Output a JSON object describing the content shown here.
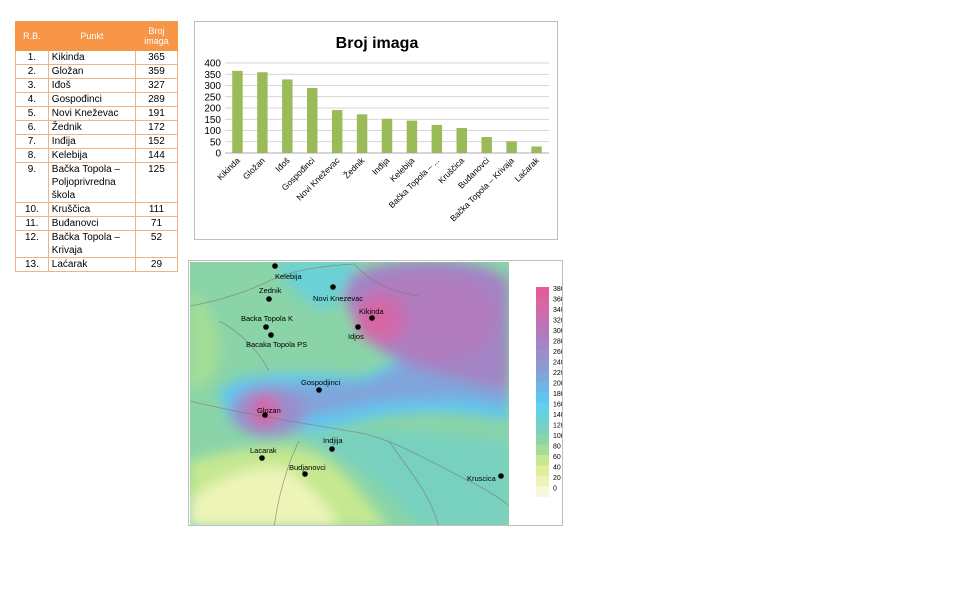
{
  "table": {
    "headers": {
      "rb": "R.B.",
      "punkt": "Punkt",
      "broj_line1": "Broj",
      "broj_line2": "imaga"
    },
    "rows": [
      {
        "rb": "1.",
        "punkt": "Kikinda",
        "broj": "365"
      },
      {
        "rb": "2.",
        "punkt": "Gložan",
        "broj": "359"
      },
      {
        "rb": "3.",
        "punkt": "Iđoš",
        "broj": "327"
      },
      {
        "rb": "4.",
        "punkt": "Gospođinci",
        "broj": "289"
      },
      {
        "rb": "5.",
        "punkt": "Novi Kneževac",
        "broj": "191"
      },
      {
        "rb": "6.",
        "punkt": "Žednik",
        "broj": "172"
      },
      {
        "rb": "7.",
        "punkt": "Inđija",
        "broj": "152"
      },
      {
        "rb": "8.",
        "punkt": "Kelebija",
        "broj": "144"
      },
      {
        "rb": "9.",
        "punkt": "Bačka Topola – Poljoprivredna škola",
        "broj": "125"
      },
      {
        "rb": "10.",
        "punkt": "Kruščica",
        "broj": "111"
      },
      {
        "rb": "11.",
        "punkt": "Buđanovci",
        "broj": "71"
      },
      {
        "rb": "12.",
        "punkt": "Bačka Topola – Krivaja",
        "broj": "52"
      },
      {
        "rb": "13.",
        "punkt": "Laćarak",
        "broj": "29"
      }
    ]
  },
  "chart_data": [
    {
      "type": "bar",
      "title": "Broj imaga",
      "categories": [
        "Kikinda",
        "Gložan",
        "Iđoš",
        "Gospođinci",
        "Novi Kneževac",
        "Žednik",
        "Inđija",
        "Kelebija",
        "Bačka Topola – ...",
        "Kruščica",
        "Buđanovci",
        "Bačka Topola – Krivaja",
        "Laćarak"
      ],
      "values": [
        365,
        359,
        327,
        289,
        191,
        172,
        152,
        144,
        125,
        111,
        71,
        52,
        29
      ],
      "ylim": [
        0,
        400
      ],
      "yticks": [
        0,
        50,
        100,
        150,
        200,
        250,
        300,
        350,
        400
      ],
      "grid": true,
      "bar_color": "#9bbb59"
    },
    {
      "type": "heatmap",
      "points": [
        {
          "name": "Kelebija"
        },
        {
          "name": "Zednik"
        },
        {
          "name": "Novi Knezevac"
        },
        {
          "name": "Kikinda"
        },
        {
          "name": "Backa Topola K"
        },
        {
          "name": "Idjos"
        },
        {
          "name": "Bacaka Topola PS"
        },
        {
          "name": "Gospodjinci"
        },
        {
          "name": "Glozan"
        },
        {
          "name": "Indjija"
        },
        {
          "name": "Lacarak"
        },
        {
          "name": "Budjanovci"
        },
        {
          "name": "Kruscica"
        }
      ],
      "colorbar_ticks": [
        380,
        360,
        340,
        320,
        300,
        280,
        260,
        240,
        220,
        200,
        180,
        160,
        140,
        120,
        100,
        80,
        60,
        40,
        20,
        0
      ],
      "colorbar_colors": [
        "#e35d9b",
        "#d965a3",
        "#cc6cad",
        "#bf73b5",
        "#b07bbd",
        "#a384c5",
        "#9790cc",
        "#8c99d2",
        "#7fa5da",
        "#6db5e6",
        "#5fc6f0",
        "#62d0eb",
        "#6ad1d6",
        "#78d1bf",
        "#8ad4a8",
        "#a3dd98",
        "#c5e890",
        "#e0ef9a",
        "#eef4b8",
        "#f8f9dc"
      ]
    }
  ]
}
